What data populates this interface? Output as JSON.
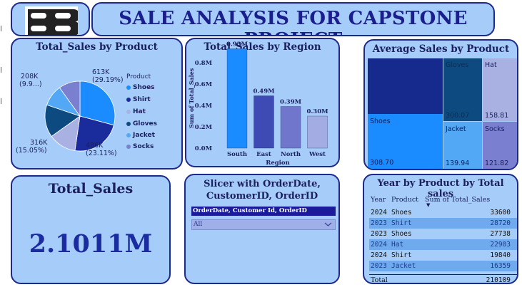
{
  "dashboard": {
    "title": "SALE ANALYSIS FOR CAPSTONE PROJECT"
  },
  "colors": {
    "card_bg": "#a6cdfa",
    "border": "#1d2a8c",
    "shoes": "#1a8cff",
    "shirt": "#1a2b9b",
    "hat": "#a9b1e3",
    "gloves": "#0d4a7f",
    "jacket": "#52a8f5",
    "socks": "#7a7fcf"
  },
  "pie": {
    "title": "Total_Sales by Product",
    "legend_title": "Product",
    "legend": [
      "Shoes",
      "Shirt",
      "Hat",
      "Gloves",
      "Jacket",
      "Socks"
    ],
    "labels": {
      "shoes": [
        "613K",
        "(29.19%)"
      ],
      "shirt": [
        "486K",
        "(23.11%)"
      ],
      "gloves": [
        "316K",
        "(15.05%)"
      ],
      "socks": [
        "208K",
        "(9.9...)"
      ]
    }
  },
  "bar": {
    "title": "Total_Sales by Region",
    "ylabel": "Sum of Total_Sales",
    "xlabel": "Region",
    "ticks": [
      "0.0M",
      "0.2M",
      "0.4M",
      "0.6M",
      "0.8M"
    ]
  },
  "treemap": {
    "title": "Average Sales by Product",
    "cells": [
      {
        "name": "Shoes",
        "value": "308.70"
      },
      {
        "name": "Gloves",
        "value": "300.07"
      },
      {
        "name": "Hat",
        "value": "158.81"
      },
      {
        "name": "Jacket",
        "value": "139.94"
      },
      {
        "name": "Socks",
        "value": "121.82"
      },
      {
        "name": "",
        "value": ""
      }
    ]
  },
  "total_card": {
    "title": "Total_Sales",
    "value": "2.1011M"
  },
  "slicer": {
    "title": "Slicer with OrderDate, CustomerID, OrderID",
    "header": "OrderDate, Customer Id, OrderID",
    "selected": "All"
  },
  "table": {
    "title": "Year by Product by Total sales",
    "columns": [
      "Year",
      "Product",
      "Sum of Total_Sales"
    ],
    "rows": [
      [
        "2024",
        "Shoes",
        "33600"
      ],
      [
        "2023",
        "Shirt",
        "28720"
      ],
      [
        "2023",
        "Shoes",
        "27738"
      ],
      [
        "2024",
        "Hat",
        "22903"
      ],
      [
        "2024",
        "Shirt",
        "19840"
      ],
      [
        "2023",
        "Jacket",
        "16359"
      ]
    ],
    "total_label": "Total",
    "total_value": "210109"
  },
  "chart_data": [
    {
      "type": "pie",
      "title": "Total_Sales by Product",
      "categories": [
        "Shoes",
        "Shirt",
        "Hat",
        "Gloves",
        "Jacket",
        "Socks"
      ],
      "values": [
        613,
        486,
        270,
        316,
        208,
        208
      ],
      "value_unit": "K"
    },
    {
      "type": "bar",
      "title": "Total_Sales by Region",
      "categories": [
        "South",
        "East",
        "North",
        "West"
      ],
      "values": [
        0.93,
        0.49,
        0.39,
        0.3
      ],
      "data_labels": [
        "0.93M",
        "0.49M",
        "0.39M",
        "0.30M"
      ],
      "xlabel": "Region",
      "ylabel": "Sum of Total_Sales",
      "ylim": [
        0,
        0.9
      ]
    },
    {
      "type": "treemap",
      "title": "Average Sales by Product",
      "categories": [
        "Shoes",
        "Gloves",
        "Hat",
        "Jacket",
        "Socks"
      ],
      "values": [
        308.7,
        300.07,
        158.81,
        139.94,
        121.82
      ]
    }
  ]
}
